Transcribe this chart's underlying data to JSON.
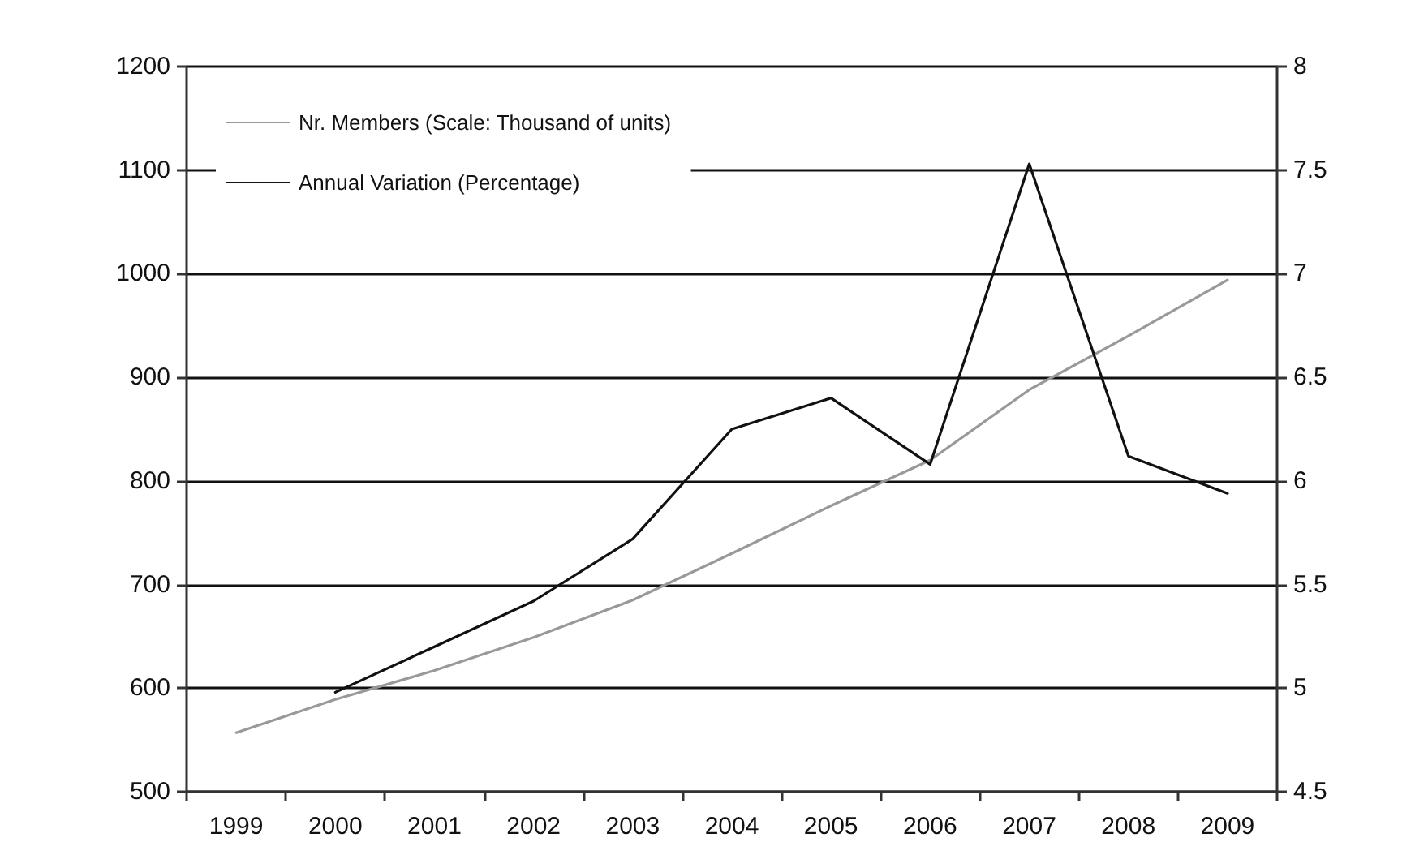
{
  "chart_data": {
    "type": "line",
    "categories": [
      "1999",
      "2000",
      "2001",
      "2002",
      "2003",
      "2004",
      "2005",
      "2006",
      "2007",
      "2008",
      "2009"
    ],
    "series": [
      {
        "name": "Nr. Members (Scale: Thousand of units)",
        "color": "#999999",
        "values": [
          557,
          589,
          617,
          649,
          685,
          730,
          776,
          820,
          888,
          940,
          994
        ]
      },
      {
        "name": "Annual Variation (Percentage)",
        "color": "#111111",
        "axis": "y2",
        "values": [
          null,
          4.98,
          5.2,
          5.42,
          5.72,
          6.25,
          6.4,
          6.08,
          7.53,
          6.12,
          5.94
        ]
      }
    ],
    "ylim": [
      500,
      1200
    ],
    "yticks": [
      500,
      600,
      700,
      800,
      900,
      1000,
      1100,
      1200
    ],
    "y2lim": [
      4.5,
      8
    ],
    "y2ticks": [
      4.5,
      5,
      5.5,
      6,
      6.5,
      7,
      7.5,
      8
    ],
    "grid": "y",
    "legend": "top left",
    "marker": "none",
    "line_style": "solid"
  }
}
